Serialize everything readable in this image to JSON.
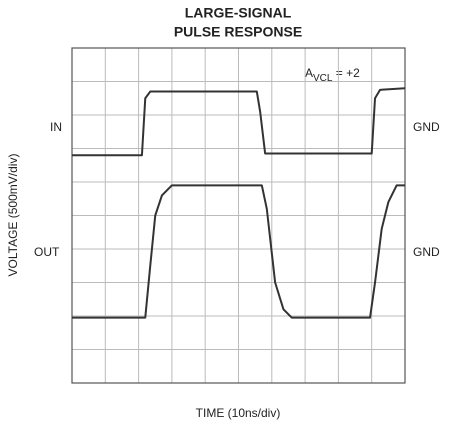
{
  "chart_data": {
    "type": "line",
    "title": [
      "LARGE-SIGNAL",
      "PULSE RESPONSE"
    ],
    "x_label": "TIME (10ns/div)",
    "y_label": "VOLTAGE (500mV/div)",
    "annotations": {
      "gain": {
        "main": "A",
        "sub": "VCL",
        "rest": " = +2"
      },
      "in_left": "IN",
      "in_right": "GND",
      "out_left": "OUT",
      "out_right": "GND"
    },
    "xlim": [
      0,
      10
    ],
    "ylim": [
      0,
      10
    ],
    "xticks": [
      0,
      1,
      2,
      3,
      4,
      5,
      6,
      7,
      8,
      9,
      10
    ],
    "yticks": [
      0,
      1,
      2,
      3,
      4,
      5,
      6,
      7,
      8,
      9,
      10
    ],
    "grid": true,
    "series": [
      {
        "name": "IN",
        "color": "#333333",
        "x": [
          0,
          2.1,
          2.2,
          2.35,
          5.55,
          5.65,
          5.8,
          9.0,
          9.1,
          9.25,
          10
        ],
        "values": [
          6.8,
          6.8,
          8.5,
          8.7,
          8.7,
          8.1,
          6.85,
          6.85,
          8.5,
          8.75,
          8.8
        ]
      },
      {
        "name": "OUT",
        "color": "#333333",
        "x": [
          0,
          2.2,
          2.35,
          2.5,
          2.7,
          3.0,
          5.7,
          5.85,
          6.1,
          6.35,
          6.6,
          8.95,
          9.1,
          9.3,
          9.5,
          9.75,
          10
        ],
        "values": [
          1.95,
          1.95,
          3.5,
          5.0,
          5.6,
          5.9,
          5.9,
          5.2,
          3.0,
          2.2,
          1.95,
          1.95,
          3.0,
          4.6,
          5.4,
          5.9,
          5.9
        ]
      }
    ]
  }
}
